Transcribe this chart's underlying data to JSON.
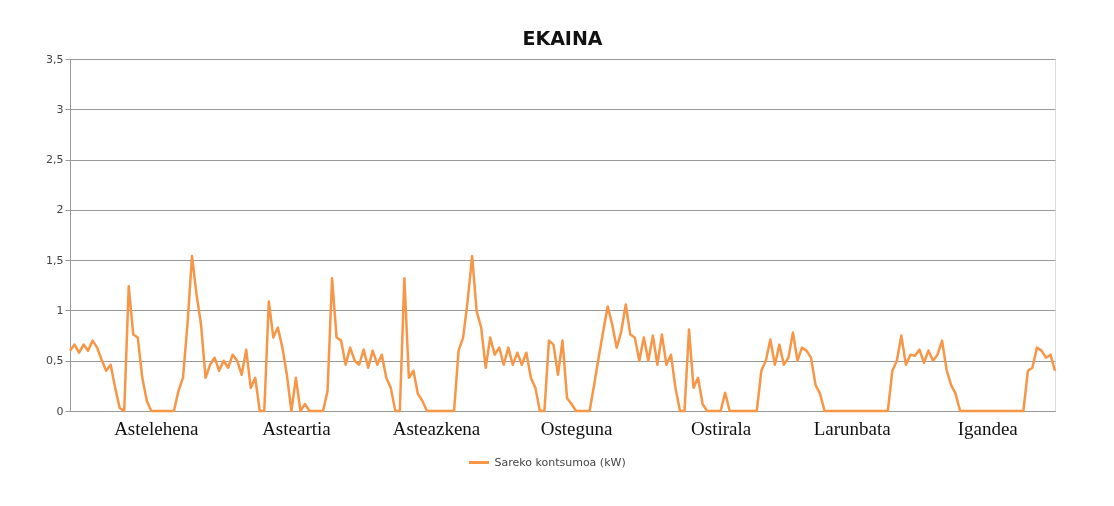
{
  "chart_data": {
    "type": "line",
    "title": "EKAINA",
    "categories": [
      null,
      null,
      null,
      null,
      null,
      null,
      null,
      null,
      null,
      null,
      null,
      null,
      null,
      null,
      null,
      null,
      null,
      null,
      null,
      "Astelehena",
      null,
      null,
      null,
      null,
      null,
      null,
      null,
      null,
      null,
      null,
      null,
      null,
      null,
      null,
      null,
      null,
      null,
      null,
      null,
      null,
      null,
      null,
      null,
      null,
      null,
      null,
      null,
      null,
      null,
      null,
      "Asteartia",
      null,
      null,
      null,
      null,
      null,
      null,
      null,
      null,
      null,
      null,
      null,
      null,
      null,
      null,
      null,
      null,
      null,
      null,
      null,
      null,
      null,
      null,
      null,
      null,
      null,
      null,
      null,
      null,
      null,
      null,
      "Asteazkena",
      null,
      null,
      null,
      null,
      null,
      null,
      null,
      null,
      null,
      null,
      null,
      null,
      null,
      null,
      null,
      null,
      null,
      null,
      null,
      null,
      null,
      null,
      null,
      null,
      null,
      null,
      null,
      null,
      null,
      null,
      "Osteguna",
      null,
      null,
      null,
      null,
      null,
      null,
      null,
      null,
      null,
      null,
      null,
      null,
      null,
      null,
      null,
      null,
      null,
      null,
      null,
      null,
      null,
      null,
      null,
      null,
      null,
      null,
      null,
      null,
      null,
      null,
      null,
      "Ostirala",
      null,
      null,
      null,
      null,
      null,
      null,
      null,
      null,
      null,
      null,
      null,
      null,
      null,
      null,
      null,
      null,
      null,
      null,
      null,
      null,
      null,
      null,
      null,
      null,
      null,
      null,
      null,
      null,
      "Larunbata",
      null,
      null,
      null,
      null,
      null,
      null,
      null,
      null,
      null,
      null,
      null,
      null,
      null,
      null,
      null,
      null,
      null,
      null,
      null,
      null,
      null,
      null,
      null,
      null,
      null,
      null,
      null,
      null,
      null,
      "Igandea",
      null,
      null,
      null,
      null,
      null,
      null,
      null,
      null,
      null,
      null,
      null,
      null,
      null,
      null,
      null
    ],
    "series": [
      {
        "name": "Sareko kontsumoa (kW)",
        "color": "#f79646",
        "values": [
          0.6,
          0.66,
          0.58,
          0.66,
          0.6,
          0.7,
          0.63,
          0.51,
          0.4,
          0.46,
          0.23,
          0.03,
          0,
          1.24,
          0.76,
          0.73,
          0.33,
          0.1,
          0,
          0,
          0,
          0,
          0,
          0,
          0.2,
          0.33,
          0.86,
          1.54,
          1.16,
          0.86,
          0.33,
          0.46,
          0.53,
          0.4,
          0.5,
          0.43,
          0.56,
          0.5,
          0.36,
          0.61,
          0.23,
          0.33,
          0,
          0,
          1.09,
          0.73,
          0.83,
          0.63,
          0.36,
          0,
          0.33,
          0,
          0.07,
          0,
          0,
          0,
          0,
          0.2,
          1.32,
          0.73,
          0.7,
          0.46,
          0.63,
          0.5,
          0.46,
          0.61,
          0.43,
          0.6,
          0.46,
          0.56,
          0.33,
          0.23,
          0,
          0,
          1.32,
          0.33,
          0.4,
          0.17,
          0.1,
          0,
          0,
          0,
          0,
          0,
          0,
          0,
          0.6,
          0.73,
          1.09,
          1.54,
          0.99,
          0.83,
          0.43,
          0.73,
          0.56,
          0.63,
          0.46,
          0.63,
          0.46,
          0.58,
          0.46,
          0.58,
          0.33,
          0.23,
          0,
          0,
          0.7,
          0.66,
          0.36,
          0.7,
          0.13,
          0.07,
          0,
          0,
          0,
          0,
          0.26,
          0.53,
          0.79,
          1.04,
          0.86,
          0.63,
          0.79,
          1.06,
          0.76,
          0.73,
          0.5,
          0.73,
          0.5,
          0.75,
          0.46,
          0.76,
          0.46,
          0.56,
          0.23,
          0,
          0,
          0.81,
          0.23,
          0.33,
          0.07,
          0,
          0,
          0,
          0,
          0.18,
          0,
          0,
          0,
          0,
          0,
          0,
          0,
          0.4,
          0.5,
          0.71,
          0.46,
          0.66,
          0.46,
          0.53,
          0.78,
          0.5,
          0.63,
          0.6,
          0.53,
          0.26,
          0.17,
          0,
          0,
          0,
          0,
          0,
          0,
          0,
          0,
          0,
          0,
          0,
          0,
          0,
          0,
          0,
          0.4,
          0.5,
          0.75,
          0.46,
          0.56,
          0.55,
          0.61,
          0.48,
          0.6,
          0.5,
          0.56,
          0.7,
          0.41,
          0.26,
          0.17,
          0,
          0,
          0,
          0,
          0,
          0,
          0,
          0,
          0,
          0,
          0,
          0,
          0,
          0,
          0,
          0.4,
          0.43,
          0.63,
          0.6,
          0.53,
          0.56,
          0.4
        ]
      }
    ],
    "ylim": [
      0,
      3.5
    ],
    "yticks": [
      0,
      {
        "value": 0.5,
        "label": "0,5"
      },
      1,
      {
        "value": 1.5,
        "label": "1,5"
      },
      2,
      {
        "value": 2.5,
        "label": "2,5"
      },
      3,
      {
        "value": 3.5,
        "label": "3,5"
      }
    ],
    "grid": "y",
    "legend": "bottom",
    "marker": "none",
    "line_style": "solid"
  }
}
